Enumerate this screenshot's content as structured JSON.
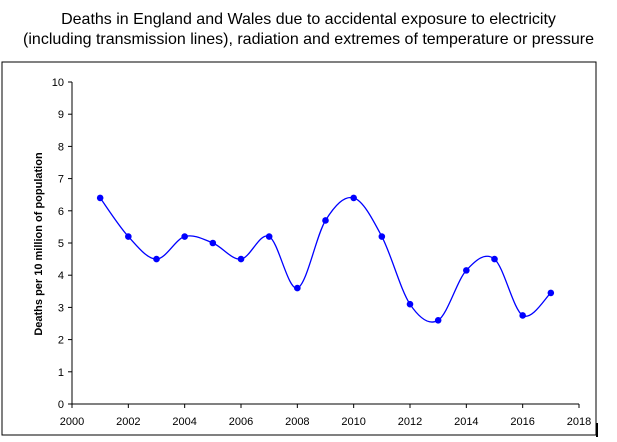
{
  "chart_data": {
    "type": "line",
    "title_line1": "Deaths in England and Wales due to accidental exposure to electricity",
    "title_line2": "(including transmission lines), radiation and extremes of temperature or pressure",
    "xlabel": "",
    "ylabel": "Deaths per 10 million of population",
    "xlim": [
      2000,
      2018
    ],
    "ylim": [
      0,
      10
    ],
    "x_ticks": [
      2000,
      2002,
      2004,
      2006,
      2008,
      2010,
      2012,
      2014,
      2016,
      2018
    ],
    "y_ticks": [
      0,
      1,
      2,
      3,
      4,
      5,
      6,
      7,
      8,
      9,
      10
    ],
    "grid": false,
    "smoothed": true,
    "series": [
      {
        "name": "Deaths per 10 million of population",
        "color": "#0000ff",
        "x": [
          2001,
          2002,
          2003,
          2004,
          2005,
          2006,
          2007,
          2008,
          2009,
          2010,
          2011,
          2012,
          2013,
          2014,
          2015,
          2016,
          2017
        ],
        "values": [
          6.4,
          5.2,
          4.5,
          5.2,
          5.0,
          4.5,
          5.2,
          3.6,
          5.7,
          6.4,
          5.2,
          3.1,
          2.6,
          4.15,
          4.5,
          2.75,
          3.45
        ]
      }
    ]
  }
}
